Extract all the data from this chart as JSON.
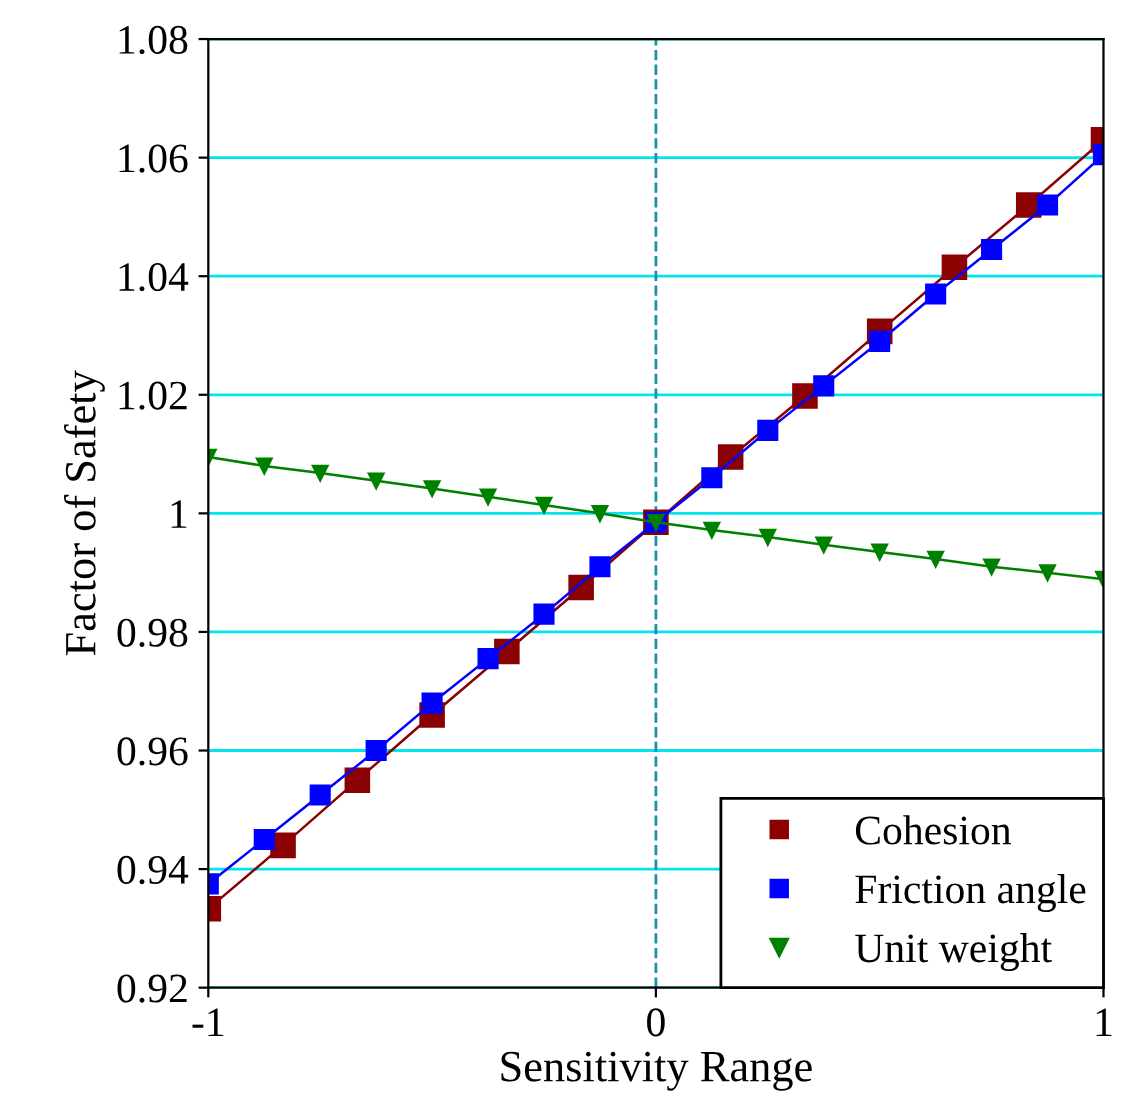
{
  "chart_data": {
    "type": "line",
    "xlabel": "Sensitivity Range",
    "ylabel": "Factor of Safety",
    "xlim": [
      -1,
      1
    ],
    "xticks": [
      -1,
      0,
      1
    ],
    "ylim": [
      0.92,
      1.08
    ],
    "yticks": [
      0.92,
      0.94,
      0.96,
      0.98,
      {
        "value": 1,
        "label": "1"
      },
      1.02,
      1.04,
      1.06,
      1.08
    ],
    "grid": "y",
    "legend": "bottom right",
    "line_style": "solid",
    "ref_lines": [
      {
        "axis": "x",
        "value": 0,
        "color": "#1f8fa8",
        "line_style": "dashed"
      }
    ],
    "series": [
      {
        "name": "Cohesion",
        "color": "#8b0000",
        "marker": "square",
        "x": [
          -1,
          -0.833,
          -0.667,
          -0.5,
          -0.333,
          -0.167,
          0,
          0.167,
          0.333,
          0.5,
          0.667,
          0.833,
          1
        ],
        "values": [
          0.9333,
          0.944,
          0.955,
          0.966,
          0.9767,
          0.9875,
          0.9985,
          1.0095,
          1.0198,
          1.0307,
          1.0415,
          1.052,
          1.063
        ]
      },
      {
        "name": "Friction angle",
        "color": "#0000ff",
        "marker": "square",
        "x": [
          -1,
          -0.875,
          -0.75,
          -0.625,
          -0.5,
          -0.375,
          -0.25,
          -0.125,
          0,
          0.125,
          0.25,
          0.375,
          0.5,
          0.625,
          0.75,
          0.875,
          1
        ],
        "values": [
          0.9375,
          0.945,
          0.9525,
          0.96,
          0.968,
          0.9755,
          0.983,
          0.991,
          0.9985,
          1.006,
          1.014,
          1.0215,
          1.029,
          1.037,
          1.0445,
          1.052,
          1.0605
        ]
      },
      {
        "name": "Unit weight",
        "color": "#008000",
        "marker": "triangle",
        "x": [
          -1,
          -0.875,
          -0.75,
          -0.625,
          -0.5,
          -0.375,
          -0.25,
          -0.125,
          0,
          0.125,
          0.25,
          0.375,
          0.5,
          0.625,
          0.75,
          0.875,
          1
        ],
        "values": [
          1.0095,
          1.008,
          1.0068,
          1.0055,
          1.0042,
          1.0028,
          1.0014,
          1.0,
          0.9985,
          0.9972,
          0.996,
          0.9947,
          0.9935,
          0.9923,
          0.991,
          0.99,
          0.9889
        ]
      }
    ]
  }
}
